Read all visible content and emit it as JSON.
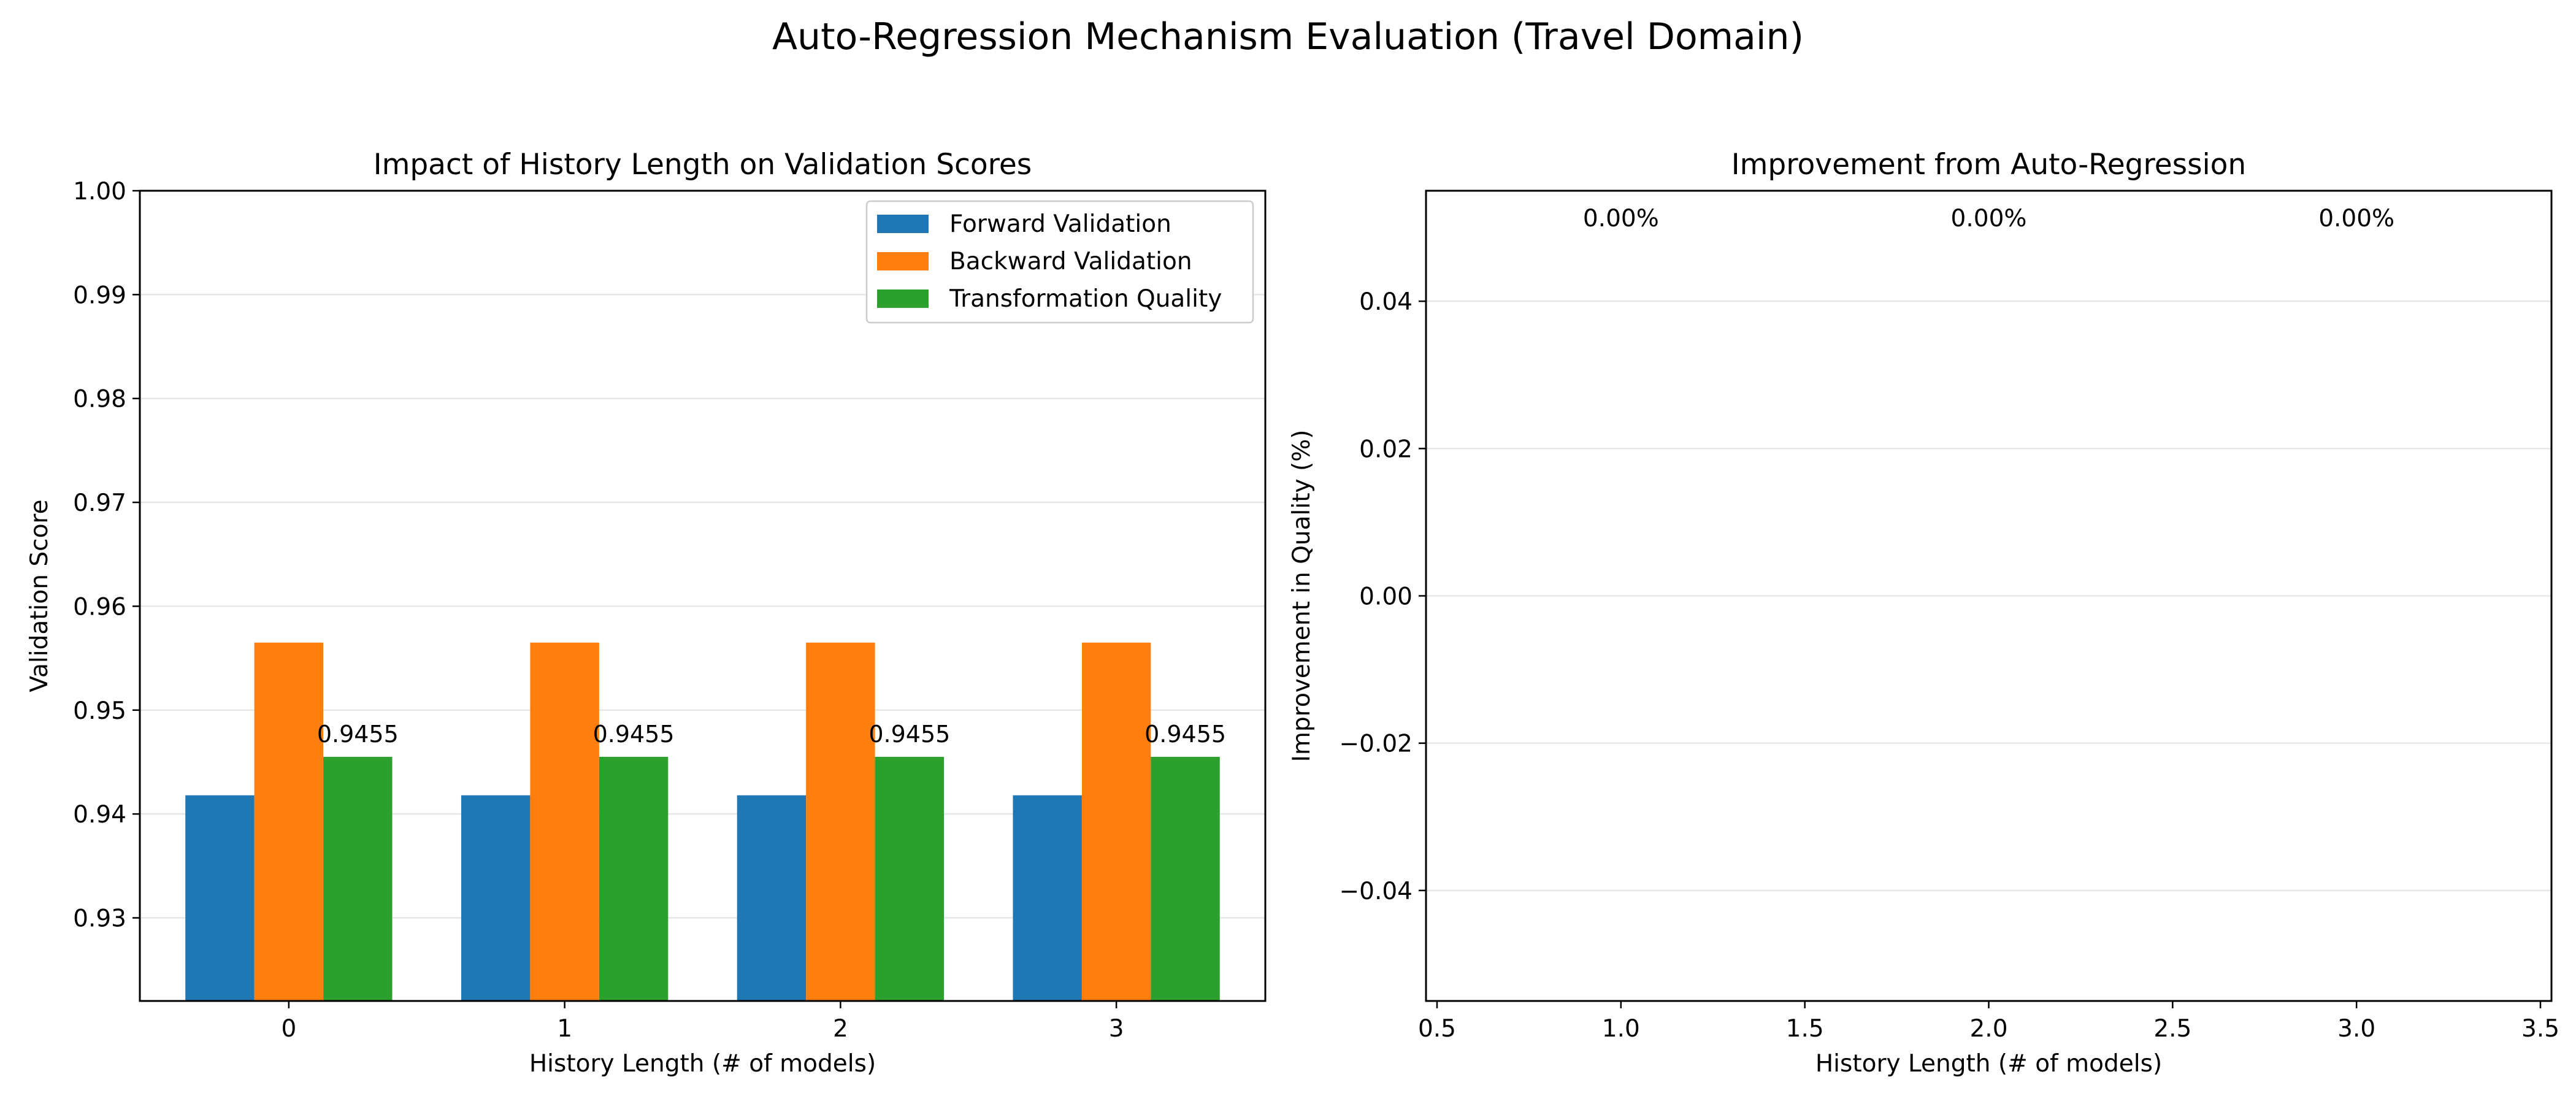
{
  "figure": {
    "suptitle": "Auto-Regression Mechanism Evaluation (Travel Domain)"
  },
  "colors": {
    "forward": "#1f77b4",
    "backward": "#ff7f0e",
    "quality": "#2ca02c",
    "grid": "#e6e6e6",
    "axis": "#000000"
  },
  "chart_data": [
    {
      "type": "bar",
      "title": "Impact of History Length on Validation Scores",
      "xlabel": "History Length (# of models)",
      "ylabel": "Validation Score",
      "categories": [
        "0",
        "1",
        "2",
        "3"
      ],
      "series": [
        {
          "name": "Forward Validation",
          "values": [
            0.9418,
            0.9418,
            0.9418,
            0.9418
          ]
        },
        {
          "name": "Backward Validation",
          "values": [
            0.9565,
            0.9565,
            0.9565,
            0.9565
          ]
        },
        {
          "name": "Transformation Quality",
          "values": [
            0.9455,
            0.9455,
            0.9455,
            0.9455
          ]
        }
      ],
      "data_labels": [
        "0.9455",
        "0.9455",
        "0.9455",
        "0.9455"
      ],
      "ylim": [
        0.922,
        1.0
      ],
      "yticks": [
        0.93,
        0.94,
        0.95,
        0.96,
        0.97,
        0.98,
        0.99,
        1.0
      ],
      "ytick_labels": [
        "0.93",
        "0.94",
        "0.95",
        "0.96",
        "0.97",
        "0.98",
        "0.99",
        "1.00"
      ],
      "grid": "y",
      "legend": "top-right"
    },
    {
      "type": "bar",
      "title": "Improvement from Auto-Regression",
      "xlabel": "History Length (# of models)",
      "ylabel": "Improvement in Quality (%)",
      "x": [
        1,
        2,
        3
      ],
      "values": [
        0.0,
        0.0,
        0.0
      ],
      "data_labels": [
        "0.00%",
        "0.00%",
        "0.00%"
      ],
      "xlim": [
        0.47,
        3.53
      ],
      "ylim": [
        -0.055,
        0.055
      ],
      "xticks": [
        0.5,
        1.0,
        1.5,
        2.0,
        2.5,
        3.0,
        3.5
      ],
      "xtick_labels": [
        "0.5",
        "1.0",
        "1.5",
        "2.0",
        "2.5",
        "3.0",
        "3.5"
      ],
      "yticks": [
        -0.04,
        -0.02,
        0.0,
        0.02,
        0.04
      ],
      "ytick_labels": [
        "−0.04",
        "−0.02",
        "0.00",
        "0.02",
        "0.04"
      ],
      "grid": "y"
    }
  ]
}
